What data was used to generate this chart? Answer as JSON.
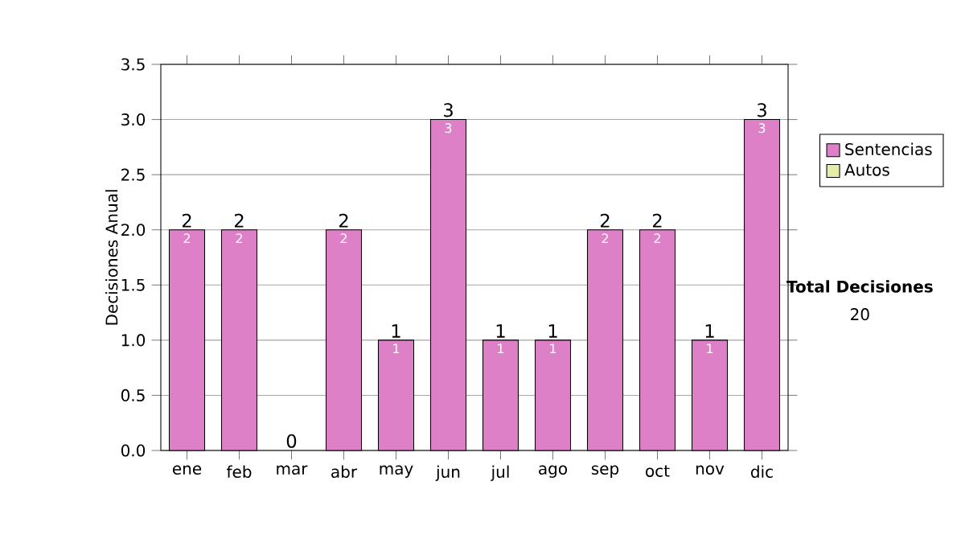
{
  "chart_data": {
    "type": "bar",
    "ylabel": "Decisiones Anual",
    "categories": [
      "ene",
      "feb",
      "mar",
      "abr",
      "may",
      "jun",
      "jul",
      "ago",
      "sep",
      "oct",
      "nov",
      "dic"
    ],
    "series": [
      {
        "name": "Sentencias",
        "color": "#dd80c8",
        "values": [
          2,
          2,
          0,
          2,
          1,
          3,
          1,
          1,
          2,
          2,
          1,
          3
        ],
        "value_labels": [
          "2",
          "2",
          null,
          "2",
          "1",
          "3",
          "1",
          "1",
          "2",
          "2",
          "1",
          "3"
        ]
      },
      {
        "name": "Autos",
        "color": "#e4eca8",
        "values": [
          null,
          null,
          null,
          null,
          null,
          null,
          null,
          null,
          null,
          null,
          null,
          null
        ]
      }
    ],
    "stacked": true,
    "totals": [
      "2",
      "2",
      "0",
      "2",
      "1",
      "3",
      "1",
      "1",
      "2",
      "2",
      "1",
      "3"
    ],
    "ylim": [
      0,
      3.5
    ],
    "yticks": [
      {
        "value": 0,
        "label": "0.0"
      },
      {
        "value": 0.5,
        "label": "0.5"
      },
      {
        "value": 1,
        "label": "1.0"
      },
      {
        "value": 1.5,
        "label": "1.5"
      },
      {
        "value": 2,
        "label": "2.0"
      },
      {
        "value": 2.5,
        "label": "2.5"
      },
      {
        "value": 3,
        "label": "3.0"
      },
      {
        "value": 3.5,
        "label": "3.5"
      }
    ],
    "grid": "y",
    "legend": "right",
    "annotations": [
      "**Total Decisiones**",
      "20"
    ]
  }
}
